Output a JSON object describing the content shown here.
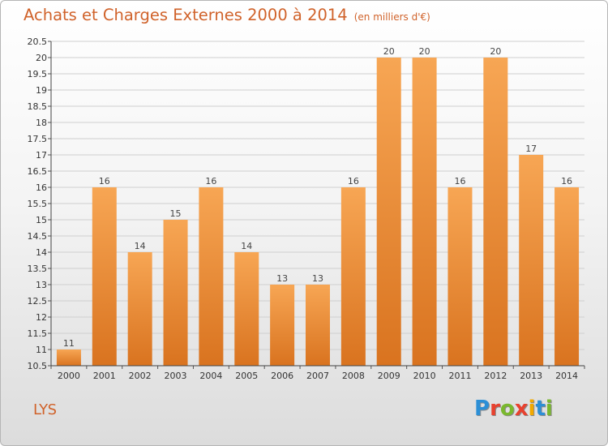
{
  "header": {
    "title": "Achats et Charges Externes 2000 à 2014",
    "subtitle": "(en milliers d'€)"
  },
  "footer": {
    "commune": "LYS",
    "logo": [
      {
        "ch": "P",
        "color": "#2c8fd6"
      },
      {
        "ch": "r",
        "color": "#e8412e"
      },
      {
        "ch": "o",
        "color": "#7ab82e"
      },
      {
        "ch": "x",
        "color": "#e8412e"
      },
      {
        "ch": "i",
        "color": "#f2a900"
      },
      {
        "ch": "t",
        "color": "#2c8fd6"
      },
      {
        "ch": "i",
        "color": "#7ab82e"
      }
    ]
  },
  "colors": {
    "bar_top": "#f7a654",
    "bar_bottom": "#d9731f",
    "grid": "#cfcfcf"
  },
  "chart_data": {
    "type": "bar",
    "title": "Achats et Charges Externes 2000 à 2014",
    "subtitle": "(en milliers d'€)",
    "categories": [
      "2000",
      "2001",
      "2002",
      "2003",
      "2004",
      "2005",
      "2006",
      "2007",
      "2008",
      "2009",
      "2010",
      "2011",
      "2012",
      "2013",
      "2014"
    ],
    "values": [
      11,
      16,
      14,
      15,
      16,
      14,
      13,
      13,
      16,
      20,
      20,
      16,
      20,
      17,
      16
    ],
    "ylim": [
      10.5,
      20.5
    ],
    "yticks": [
      "10.5",
      "11",
      "11.5",
      "12",
      "12.5",
      "13",
      "13.5",
      "14",
      "14.5",
      "15",
      "15.5",
      "16",
      "16.5",
      "17",
      "17.5",
      "18",
      "18.5",
      "19",
      "19.5",
      "20",
      "20.5"
    ],
    "xlabel": "",
    "ylabel": "",
    "grid": true
  }
}
